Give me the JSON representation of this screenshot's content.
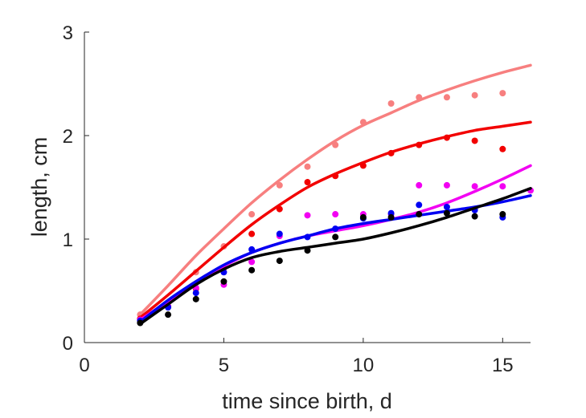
{
  "chart_data": {
    "type": "scatter",
    "title": "",
    "xlabel": "time since birth, d",
    "ylabel": "length, cm",
    "xlim": [
      0,
      16
    ],
    "ylim": [
      0,
      3
    ],
    "xticks": [
      "0",
      "5",
      "10",
      "15"
    ],
    "yticks": [
      "0",
      "1",
      "2",
      "3"
    ],
    "grid": false,
    "legend": "none",
    "series": [
      {
        "color": "#f77f7f",
        "points": {
          "x": [
            2,
            3,
            4,
            5,
            6,
            7,
            8,
            9,
            10,
            11,
            12,
            13,
            14,
            15
          ],
          "y": [
            0.27,
            0.35,
            0.68,
            0.93,
            1.24,
            1.52,
            1.7,
            1.91,
            2.13,
            2.31,
            2.37,
            2.37,
            2.39,
            2.41
          ]
        },
        "fit": {
          "x": [
            2,
            3,
            4,
            5,
            6,
            7,
            8,
            9,
            10,
            11,
            12,
            13,
            14,
            15,
            16
          ],
          "y": [
            0.27,
            0.55,
            0.84,
            1.1,
            1.35,
            1.57,
            1.77,
            1.95,
            2.1,
            2.22,
            2.34,
            2.44,
            2.53,
            2.61,
            2.68
          ]
        }
      },
      {
        "color": "#f20000",
        "points": {
          "x": [
            2,
            3,
            4,
            5,
            6,
            7,
            8,
            9,
            10,
            11,
            12,
            13,
            14,
            15
          ],
          "y": [
            0.23,
            0.35,
            0.52,
            0.72,
            1.05,
            1.29,
            1.55,
            1.61,
            1.71,
            1.83,
            1.91,
            1.98,
            1.95,
            1.87
          ]
        },
        "fit": {
          "x": [
            2,
            3,
            4,
            5,
            6,
            7,
            8,
            9,
            10,
            11,
            12,
            13,
            14,
            15,
            16
          ],
          "y": [
            0.24,
            0.46,
            0.69,
            0.92,
            1.14,
            1.33,
            1.5,
            1.63,
            1.74,
            1.84,
            1.92,
            1.99,
            2.05,
            2.09,
            2.13
          ]
        }
      },
      {
        "color": "#f200f2",
        "points": {
          "x": [
            2,
            3,
            4,
            5,
            6,
            7,
            8,
            9,
            10,
            11,
            12,
            13,
            14,
            15,
            16
          ],
          "y": [
            0.22,
            0.35,
            0.53,
            0.56,
            0.78,
            1.03,
            1.23,
            1.24,
            1.24,
            1.24,
            1.52,
            1.52,
            1.51,
            1.51,
            1.47
          ]
        },
        "fit": {
          "x": [
            2,
            3,
            4,
            5,
            6,
            7,
            8,
            9,
            10,
            11,
            12,
            13,
            14,
            15,
            16
          ],
          "y": [
            0.22,
            0.4,
            0.59,
            0.74,
            0.87,
            0.96,
            1.03,
            1.08,
            1.13,
            1.19,
            1.26,
            1.35,
            1.46,
            1.58,
            1.71
          ]
        }
      },
      {
        "color": "#0000f2",
        "points": {
          "x": [
            2,
            3,
            4,
            5,
            6,
            7,
            8,
            9,
            10,
            11,
            12,
            13,
            14,
            15
          ],
          "y": [
            0.21,
            0.34,
            0.48,
            0.68,
            0.9,
            1.05,
            1.02,
            1.1,
            1.2,
            1.25,
            1.33,
            1.31,
            1.28,
            1.21
          ]
        },
        "fit": {
          "x": [
            2,
            3,
            4,
            5,
            6,
            7,
            8,
            9,
            10,
            11,
            12,
            13,
            14,
            15,
            16
          ],
          "y": [
            0.2,
            0.41,
            0.59,
            0.75,
            0.87,
            0.96,
            1.03,
            1.1,
            1.15,
            1.19,
            1.23,
            1.27,
            1.31,
            1.36,
            1.42
          ]
        }
      },
      {
        "color": "#000000",
        "points": {
          "x": [
            2,
            3,
            4,
            5,
            6,
            7,
            8,
            9,
            10,
            11,
            12,
            13,
            14,
            15
          ],
          "y": [
            0.19,
            0.27,
            0.42,
            0.59,
            0.7,
            0.79,
            0.89,
            1.02,
            1.21,
            1.21,
            1.24,
            1.25,
            1.22,
            1.24
          ]
        },
        "fit": {
          "x": [
            2,
            3,
            4,
            5,
            6,
            7,
            8,
            9,
            10,
            11,
            12,
            13,
            14,
            15,
            16
          ],
          "y": [
            0.18,
            0.37,
            0.56,
            0.71,
            0.82,
            0.88,
            0.92,
            0.96,
            1.0,
            1.06,
            1.13,
            1.21,
            1.3,
            1.39,
            1.49
          ]
        }
      }
    ]
  }
}
